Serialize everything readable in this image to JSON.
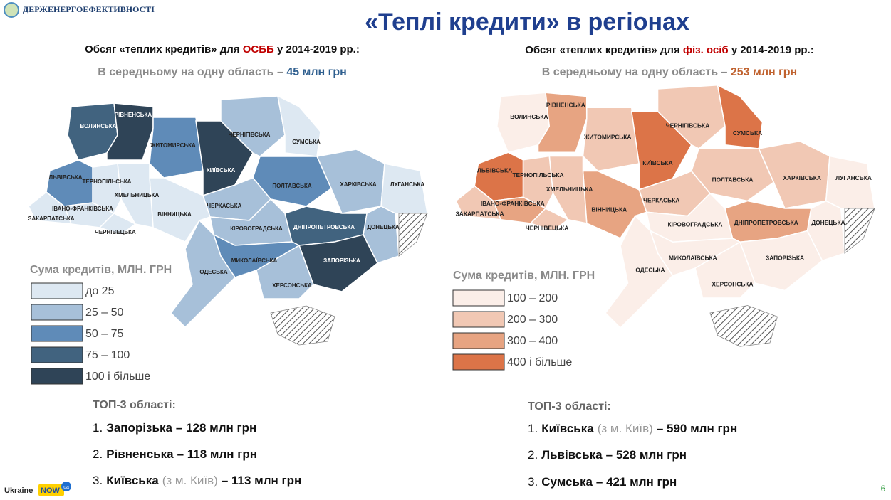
{
  "header": {
    "logo": "ДЕРЖЕНЕРГОЕФЕКТИВНОСТІ",
    "title": "«Теплі кредити» в регіонах"
  },
  "maps": [
    {
      "subtitle": {
        "pre": "Обсяг «теплих кредитів» для ",
        "highlight": "ОСББ",
        "post": " у 2014-2019 рр.:",
        "highlight_color": "#c00000"
      },
      "average": {
        "pre": "В середньому на одну область – ",
        "value": "45 млн грн",
        "value_color": "#2f5f8f"
      },
      "legend": {
        "title": "Сума кредитів, МЛН. ГРН",
        "items": [
          {
            "label": "до 25",
            "color": "#dde8f2"
          },
          {
            "label": "25 – 50",
            "color": "#a7c0d9"
          },
          {
            "label": "50 – 75",
            "color": "#5f8bb8"
          },
          {
            "label": "75 – 100",
            "color": "#41637f"
          },
          {
            "label": "100 і більше",
            "color": "#2f4457"
          }
        ]
      },
      "regions": [
        {
          "name": "ВОЛИНСЬКА",
          "color": "#41637f"
        },
        {
          "name": "РІВНЕНСЬКА",
          "color": "#2f4457"
        },
        {
          "name": "ЖИТОМИРСЬКА",
          "color": "#5f8bb8"
        },
        {
          "name": "КИЇВСЬКА",
          "color": "#2f4457"
        },
        {
          "name": "ЧЕРНІГІВСЬКА",
          "color": "#a7c0d9"
        },
        {
          "name": "СУМСЬКА",
          "color": "#dde8f2"
        },
        {
          "name": "ХАРКІВСЬКА",
          "color": "#a7c0d9"
        },
        {
          "name": "ЛУГАНСЬКА",
          "color": "#dde8f2"
        },
        {
          "name": "ДОНЕЦЬКА",
          "color": "#a7c0d9"
        },
        {
          "name": "ПОЛТАВСЬКА",
          "color": "#5f8bb8"
        },
        {
          "name": "ЧЕРКАСЬКА",
          "color": "#a7c0d9"
        },
        {
          "name": "КІРОВОГРАДСЬКА",
          "color": "#a7c0d9"
        },
        {
          "name": "ДНІПРОПЕТРОВСЬКА",
          "color": "#41637f"
        },
        {
          "name": "ЗАПОРІЗЬКА",
          "color": "#2f4457"
        },
        {
          "name": "ХЕРСОНСЬКА",
          "color": "#a7c0d9"
        },
        {
          "name": "МИКОЛАЇВСЬКА",
          "color": "#5f8bb8"
        },
        {
          "name": "ОДЕСЬКА",
          "color": "#a7c0d9"
        },
        {
          "name": "ВІННИЦЬКА",
          "color": "#dde8f2"
        },
        {
          "name": "ХМЕЛЬНИЦЬКА",
          "color": "#dde8f2"
        },
        {
          "name": "ТЕРНОПІЛЬСЬКА",
          "color": "#dde8f2"
        },
        {
          "name": "ЛЬВІВСЬКА",
          "color": "#5f8bb8"
        },
        {
          "name": "ІВАНО-ФРАНКІВСЬКА",
          "color": "#dde8f2"
        },
        {
          "name": "ЗАКАРПАТСЬКА",
          "color": "#dde8f2"
        },
        {
          "name": "ЧЕРНІВЕЦЬКА",
          "color": "#dde8f2"
        }
      ],
      "top3": {
        "title": "ТОП-3 області:",
        "items": [
          {
            "rank": "1.",
            "region": "Запорізька",
            "rest": "– 128 млн грн"
          },
          {
            "rank": "2.",
            "region": "Рівненська",
            "rest": "– 118 млн грн"
          },
          {
            "rank": "3.",
            "region": "Київська",
            "note": "(з м. Київ)",
            "rest": "– 113  млн грн"
          }
        ]
      }
    },
    {
      "subtitle": {
        "pre": "Обсяг «теплих кредитів» для ",
        "highlight": "фіз. осіб",
        "post": " у 2014-2019 рр.:",
        "highlight_color": "#c00000"
      },
      "average": {
        "pre": "В середньому на одну область – ",
        "value": "253 млн грн",
        "value_color": "#c0622f"
      },
      "legend": {
        "title": "Сума кредитів, МЛН. ГРН",
        "items": [
          {
            "label": "100 – 200",
            "color": "#fbeee8"
          },
          {
            "label": "200 – 300",
            "color": "#f1c8b4"
          },
          {
            "label": "300 – 400",
            "color": "#e7a482"
          },
          {
            "label": "400 і більше",
            "color": "#dc7448"
          }
        ]
      },
      "regions": [
        {
          "name": "ВОЛИНСЬКА",
          "color": "#fbeee8"
        },
        {
          "name": "РІВНЕНСЬКА",
          "color": "#e7a482"
        },
        {
          "name": "ЖИТОМИРСЬКА",
          "color": "#f1c8b4"
        },
        {
          "name": "КИЇВСЬКА",
          "color": "#dc7448"
        },
        {
          "name": "ЧЕРНІГІВСЬКА",
          "color": "#f1c8b4"
        },
        {
          "name": "СУМСЬКА",
          "color": "#dc7448"
        },
        {
          "name": "ХАРКІВСЬКА",
          "color": "#f1c8b4"
        },
        {
          "name": "ЛУГАНСЬКА",
          "color": "#fbeee8"
        },
        {
          "name": "ДОНЕЦЬКА",
          "color": "#fbeee8"
        },
        {
          "name": "ПОЛТАВСЬКА",
          "color": "#f1c8b4"
        },
        {
          "name": "ЧЕРКАСЬКА",
          "color": "#f1c8b4"
        },
        {
          "name": "КІРОВОГРАДСЬКА",
          "color": "#fbeee8"
        },
        {
          "name": "ДНІПРОПЕТРОВСЬКА",
          "color": "#e7a482"
        },
        {
          "name": "ЗАПОРІЗЬКА",
          "color": "#fbeee8"
        },
        {
          "name": "ХЕРСОНСЬКА",
          "color": "#fbeee8"
        },
        {
          "name": "МИКОЛАЇВСЬКА",
          "color": "#fbeee8"
        },
        {
          "name": "ОДЕСЬКА",
          "color": "#fbeee8"
        },
        {
          "name": "ВІННИЦЬКА",
          "color": "#e7a482"
        },
        {
          "name": "ХМЕЛЬНИЦЬКА",
          "color": "#f1c8b4"
        },
        {
          "name": "ТЕРНОПІЛЬСЬКА",
          "color": "#f1c8b4"
        },
        {
          "name": "ЛЬВІВСЬКА",
          "color": "#dc7448"
        },
        {
          "name": "ІВАНО-ФРАНКІВСЬКА",
          "color": "#e7a482"
        },
        {
          "name": "ЗАКАРПАТСЬКА",
          "color": "#f1c8b4"
        },
        {
          "name": "ЧЕРНІВЕЦЬКА",
          "color": "#f1c8b4"
        }
      ],
      "top3": {
        "title": "ТОП-3 області:",
        "items": [
          {
            "rank": "1.",
            "region": "Київська",
            "note": "(з м. Київ)",
            "rest": "– 590 млн грн"
          },
          {
            "rank": "2.",
            "region": "Львівська",
            "rest": "– 528 млн грн"
          },
          {
            "rank": "3.",
            "region": "Сумська",
            "rest": "– 421 млн грн"
          }
        ]
      }
    }
  ],
  "footer": {
    "brand": "Ukraine",
    "brand_now": "NOW",
    "brand_ua": "ua",
    "page": "6"
  }
}
